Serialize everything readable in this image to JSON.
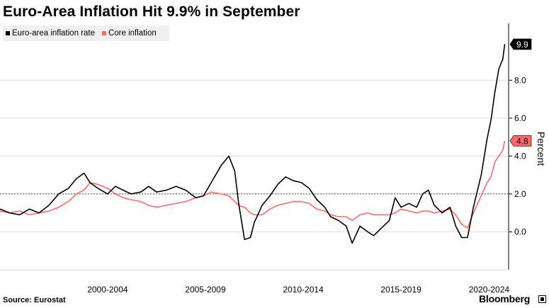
{
  "title": "Euro-Area Inflation Hit 9.9% in September",
  "source": "Source: Eurostat",
  "brand": "Bloomberg",
  "chart_data": {
    "type": "line",
    "title": "Euro-Area Inflation Hit 9.9% in September",
    "ylabel": "Percent",
    "xlabel": "",
    "xlim": [
      1997.0,
      2023.0
    ],
    "ylim": [
      -2.0,
      11.0
    ],
    "yticks": [
      0.0,
      2.0,
      4.0,
      6.0,
      8.0
    ],
    "ytick_labels": [
      "0.0",
      "2.0",
      "4.0",
      "6.0",
      "8.0"
    ],
    "xtick_labels": [
      {
        "label": "2000-2004",
        "center": 2002.5
      },
      {
        "label": "2005-2009",
        "center": 2007.5
      },
      {
        "label": "2010-2014",
        "center": 2012.5
      },
      {
        "label": "2015-2019",
        "center": 2017.5
      },
      {
        "label": "2020-2024",
        "center": 2022.0
      }
    ],
    "reference_line": 2.0,
    "legend_position": "top-left",
    "last_value_labels": [
      {
        "series": "Euro-area inflation rate",
        "value": "9.9"
      },
      {
        "series": "Core inflation",
        "value": "4.8"
      }
    ],
    "series": [
      {
        "name": "Euro-area inflation rate",
        "color": "#000000",
        "points": [
          [
            1997.0,
            1.2
          ],
          [
            1997.5,
            1.0
          ],
          [
            1998.0,
            0.9
          ],
          [
            1998.5,
            1.2
          ],
          [
            1999.0,
            1.0
          ],
          [
            1999.5,
            1.4
          ],
          [
            2000.0,
            2.0
          ],
          [
            2000.5,
            2.3
          ],
          [
            2000.9,
            2.8
          ],
          [
            2001.3,
            3.1
          ],
          [
            2001.6,
            2.6
          ],
          [
            2002.0,
            2.3
          ],
          [
            2002.5,
            2.0
          ],
          [
            2002.9,
            2.4
          ],
          [
            2003.3,
            2.2
          ],
          [
            2003.7,
            2.0
          ],
          [
            2004.2,
            2.1
          ],
          [
            2004.6,
            2.4
          ],
          [
            2005.0,
            2.1
          ],
          [
            2005.5,
            2.2
          ],
          [
            2006.0,
            2.4
          ],
          [
            2006.5,
            2.2
          ],
          [
            2007.0,
            1.8
          ],
          [
            2007.4,
            1.9
          ],
          [
            2007.8,
            2.6
          ],
          [
            2008.3,
            3.5
          ],
          [
            2008.7,
            4.0
          ],
          [
            2009.0,
            3.2
          ],
          [
            2009.2,
            1.5
          ],
          [
            2009.5,
            -0.4
          ],
          [
            2009.8,
            -0.3
          ],
          [
            2010.0,
            0.5
          ],
          [
            2010.4,
            1.4
          ],
          [
            2010.8,
            1.9
          ],
          [
            2011.2,
            2.5
          ],
          [
            2011.6,
            2.9
          ],
          [
            2012.0,
            2.7
          ],
          [
            2012.4,
            2.6
          ],
          [
            2012.8,
            2.3
          ],
          [
            2013.2,
            1.7
          ],
          [
            2013.6,
            1.3
          ],
          [
            2013.9,
            0.8
          ],
          [
            2014.3,
            0.6
          ],
          [
            2014.7,
            0.3
          ],
          [
            2015.0,
            -0.6
          ],
          [
            2015.4,
            0.3
          ],
          [
            2015.8,
            0.0
          ],
          [
            2016.1,
            -0.2
          ],
          [
            2016.5,
            0.2
          ],
          [
            2016.9,
            0.6
          ],
          [
            2017.2,
            1.8
          ],
          [
            2017.5,
            1.3
          ],
          [
            2017.9,
            1.5
          ],
          [
            2018.3,
            1.3
          ],
          [
            2018.6,
            2.0
          ],
          [
            2018.9,
            2.2
          ],
          [
            2019.2,
            1.4
          ],
          [
            2019.6,
            1.0
          ],
          [
            2020.0,
            1.3
          ],
          [
            2020.3,
            0.3
          ],
          [
            2020.6,
            -0.3
          ],
          [
            2020.9,
            -0.3
          ],
          [
            2021.2,
            1.3
          ],
          [
            2021.6,
            3.0
          ],
          [
            2021.9,
            4.9
          ],
          [
            2022.1,
            5.9
          ],
          [
            2022.3,
            7.4
          ],
          [
            2022.5,
            8.6
          ],
          [
            2022.7,
            9.1
          ],
          [
            2022.8,
            9.9
          ]
        ]
      },
      {
        "name": "Core inflation",
        "color": "#ff6b6b",
        "points": [
          [
            1997.0,
            1.1
          ],
          [
            1997.5,
            1.0
          ],
          [
            1998.0,
            1.1
          ],
          [
            1998.5,
            0.9
          ],
          [
            1999.0,
            1.0
          ],
          [
            1999.5,
            1.1
          ],
          [
            2000.0,
            1.3
          ],
          [
            2000.5,
            1.6
          ],
          [
            2000.9,
            2.0
          ],
          [
            2001.3,
            2.2
          ],
          [
            2001.6,
            2.6
          ],
          [
            2002.0,
            2.5
          ],
          [
            2002.5,
            2.3
          ],
          [
            2002.9,
            2.0
          ],
          [
            2003.3,
            1.8
          ],
          [
            2003.7,
            1.7
          ],
          [
            2004.2,
            1.6
          ],
          [
            2004.6,
            1.4
          ],
          [
            2005.0,
            1.3
          ],
          [
            2005.5,
            1.4
          ],
          [
            2006.0,
            1.5
          ],
          [
            2006.5,
            1.6
          ],
          [
            2007.0,
            1.8
          ],
          [
            2007.4,
            1.9
          ],
          [
            2007.8,
            2.1
          ],
          [
            2008.3,
            2.0
          ],
          [
            2008.7,
            1.9
          ],
          [
            2009.0,
            1.6
          ],
          [
            2009.2,
            1.4
          ],
          [
            2009.5,
            1.3
          ],
          [
            2009.8,
            1.0
          ],
          [
            2010.0,
            0.9
          ],
          [
            2010.4,
            0.9
          ],
          [
            2010.8,
            1.2
          ],
          [
            2011.2,
            1.4
          ],
          [
            2011.6,
            1.5
          ],
          [
            2012.0,
            1.6
          ],
          [
            2012.4,
            1.6
          ],
          [
            2012.8,
            1.5
          ],
          [
            2013.2,
            1.2
          ],
          [
            2013.6,
            1.1
          ],
          [
            2013.9,
            0.9
          ],
          [
            2014.3,
            0.8
          ],
          [
            2014.7,
            0.8
          ],
          [
            2015.0,
            0.6
          ],
          [
            2015.4,
            0.9
          ],
          [
            2015.8,
            1.0
          ],
          [
            2016.1,
            0.9
          ],
          [
            2016.5,
            0.9
          ],
          [
            2016.9,
            0.9
          ],
          [
            2017.2,
            1.0
          ],
          [
            2017.5,
            1.2
          ],
          [
            2017.9,
            1.1
          ],
          [
            2018.3,
            1.0
          ],
          [
            2018.6,
            1.1
          ],
          [
            2018.9,
            1.1
          ],
          [
            2019.2,
            1.0
          ],
          [
            2019.6,
            1.1
          ],
          [
            2020.0,
            1.2
          ],
          [
            2020.3,
            0.9
          ],
          [
            2020.6,
            0.4
          ],
          [
            2020.9,
            0.2
          ],
          [
            2021.2,
            1.0
          ],
          [
            2021.6,
            1.9
          ],
          [
            2021.9,
            2.6
          ],
          [
            2022.1,
            2.9
          ],
          [
            2022.3,
            3.7
          ],
          [
            2022.5,
            4.0
          ],
          [
            2022.7,
            4.3
          ],
          [
            2022.8,
            4.8
          ]
        ]
      }
    ]
  }
}
